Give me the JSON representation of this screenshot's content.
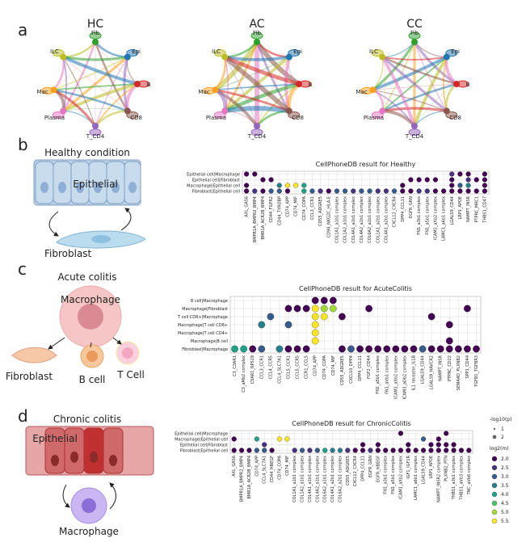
{
  "panel_labels": [
    "a",
    "b",
    "c",
    "d"
  ],
  "networks": [
    {
      "title": "HC",
      "nodes": [
        "Fib",
        "Epi",
        "B",
        "CD8",
        "T_CD4",
        "Plasma",
        "Mac",
        "ILC"
      ]
    },
    {
      "title": "AC",
      "nodes": [
        "Fib",
        "Epi",
        "B",
        "CD8",
        "T_CD4",
        "Plasma",
        "Mac",
        "ILC"
      ]
    },
    {
      "title": "CC",
      "nodes": [
        "Fib",
        "Epi",
        "B",
        "CD8",
        "T_CD4",
        "Plasma",
        "Mac",
        "ILC"
      ]
    }
  ],
  "panel_b": {
    "cartoon": {
      "title": "Healthy condition",
      "cells": [
        "Epithelial",
        "Fibroblast"
      ]
    },
    "dotplot": {
      "title": "CellPhoneDB result for Healthy",
      "rows": [
        "Epithelial cell|Macrophage",
        "Epithelial cell|Fibroblast",
        "Macrophage|Epithelial cell",
        "Fibroblast|Epithelial cell"
      ],
      "columns": [
        "AXL_GAS6",
        "BMPR1A_BMPR2_BMP4",
        "BMR1A_ACR2B_BMP4",
        "CD44_FGFR2",
        "CD44_TYROBP",
        "CD74_APP",
        "CD74_MIF",
        "CD74_COPA",
        "CCL3_CCR1",
        "CD55_ADGRE5",
        "CD94_NKG2C_HLA-E",
        "COL1A1_a1b1 complex",
        "COL1A2_a1b1 complex",
        "COL4A1_a1b1 complex",
        "COL4A2_a1b1 complex",
        "COL6A2_a1b1 complex",
        "COL1A1_a2b1 complex",
        "COL4A1_a2b1 complex",
        "CXCL12_CXCR4",
        "DPP4_CCL11",
        "EGFR_GRN",
        "FN1_a3b1 complex",
        "FN1_a5b1 complex",
        "ICAM1_aXb2 complex",
        "LAMC1_a6b1 complex",
        "LGALS9_CD44",
        "LRP1_APOE",
        "NAMPT_INSR",
        "PTPRC_MRC1",
        "THBS1_CD47"
      ],
      "levels": [
        [
          2,
          2,
          null,
          null,
          null,
          null,
          null,
          null,
          null,
          null,
          null,
          null,
          null,
          null,
          null,
          null,
          null,
          null,
          null,
          null,
          null,
          null,
          null,
          null,
          null,
          2.5,
          2,
          2,
          null,
          2
        ],
        [
          null,
          null,
          2,
          2,
          null,
          null,
          null,
          null,
          null,
          null,
          null,
          null,
          null,
          null,
          null,
          null,
          null,
          null,
          null,
          null,
          2,
          2,
          2,
          2,
          null,
          2,
          null,
          2.5,
          2,
          2
        ],
        [
          2,
          null,
          null,
          null,
          3.5,
          5.5,
          5.5,
          4,
          null,
          null,
          null,
          null,
          null,
          null,
          null,
          null,
          null,
          null,
          null,
          2,
          null,
          null,
          null,
          null,
          null,
          2,
          3,
          3.5,
          null,
          2
        ],
        [
          2,
          2.5,
          2,
          3,
          3,
          2,
          null,
          4,
          3,
          2.5,
          2,
          3,
          3,
          2.5,
          3,
          3,
          2.5,
          2.5,
          3,
          2,
          2,
          2.5,
          2.5,
          2,
          2,
          2,
          2,
          2,
          2,
          2
        ]
      ]
    }
  },
  "panel_c": {
    "cartoon": {
      "title": "Acute colitis",
      "cells": [
        "Macrophage",
        "Fibroblast",
        "B cell",
        "T Cell"
      ]
    },
    "dotplot": {
      "title": "CellPhoneDB result for AcuteColitis",
      "rows": [
        "B cell|Macrophage",
        "Macrophage|Fibroblast",
        "T cell CD8+|Macrophage",
        "Macrophage|T cell CD8+",
        "Macrophage|T cell CD4+",
        "Macrophage|B cell",
        "Fibroblast|Macrophage"
      ],
      "columns": [
        "C3_C3AR1",
        "C3_aMb2 complex",
        "C5AR1_RPS19",
        "CCL3_CCR1",
        "CCL4_CCR5",
        "CCL4_SLC7A1",
        "CCL5_CCR1",
        "CCL5_CCR5",
        "CCR1_CCL5",
        "CD74_APP",
        "CD74_COPA",
        "CD74_MIF",
        "CD55_ADGRE5",
        "CXCL10_DPP4",
        "DPP4_CCL11",
        "FGF2_CD44",
        "FN1_a5b1 complex",
        "FN1_aVb1 complex",
        "ICAM1_aXb2 complex",
        "ICAM3_aDb2 complex",
        "IL1 receptor_IL1B",
        "LGALS9_CD44",
        "LGALS9_HAVCR2",
        "NAMPT_INSR",
        "PTPRC_CD22",
        "SEMA4D_PLXNB2",
        "SPP1_CD44",
        "TGFB1_TGFBR3"
      ],
      "levels": [
        [
          null,
          null,
          null,
          null,
          null,
          null,
          null,
          null,
          null,
          2,
          2,
          2,
          null,
          null,
          null,
          null,
          null,
          null,
          null,
          null,
          null,
          null,
          null,
          null,
          null,
          null,
          null,
          null
        ],
        [
          null,
          null,
          null,
          null,
          null,
          null,
          2,
          2,
          2,
          5.5,
          5,
          5,
          null,
          null,
          null,
          2,
          null,
          null,
          null,
          null,
          null,
          null,
          null,
          null,
          null,
          null,
          2,
          null
        ],
        [
          null,
          null,
          null,
          null,
          3,
          null,
          null,
          null,
          null,
          5.5,
          5.5,
          null,
          2,
          null,
          null,
          null,
          null,
          null,
          null,
          null,
          null,
          null,
          2,
          null,
          null,
          null,
          null,
          null
        ],
        [
          null,
          null,
          null,
          3.5,
          null,
          null,
          3,
          null,
          null,
          5.5,
          null,
          null,
          null,
          null,
          null,
          null,
          null,
          null,
          null,
          null,
          null,
          null,
          null,
          null,
          2,
          null,
          null,
          null
        ],
        [
          null,
          null,
          null,
          null,
          null,
          null,
          null,
          null,
          null,
          5.5,
          null,
          null,
          null,
          null,
          null,
          null,
          null,
          null,
          null,
          null,
          null,
          null,
          null,
          null,
          null,
          null,
          null,
          null
        ],
        [
          null,
          null,
          null,
          null,
          null,
          null,
          null,
          null,
          null,
          5.5,
          null,
          null,
          null,
          null,
          null,
          null,
          null,
          null,
          null,
          null,
          null,
          null,
          null,
          null,
          2,
          null,
          null,
          null
        ],
        [
          4,
          4,
          2,
          3,
          null,
          3.5,
          2,
          2,
          2,
          null,
          null,
          null,
          2,
          3,
          2,
          2,
          2,
          2,
          2,
          2,
          2,
          3,
          2,
          2,
          2,
          2,
          2,
          2
        ]
      ]
    }
  },
  "panel_d": {
    "cartoon": {
      "title": "Chronic colitis",
      "cells": [
        "Epithelial",
        "Macrophage"
      ]
    },
    "dotplot": {
      "title": "CellPhoneDB result for ChronicColitis",
      "rows": [
        "Epithelial cell|Macrophage",
        "Macrophage|Epithelial cell",
        "Epithelial cell|Fibroblast",
        "Fibroblast|Epithelial cell"
      ],
      "columns": [
        "AXL_GAS6",
        "BMPR1A_BMPR2_BMP4",
        "BMR1A_ACR2B_BMP4",
        "CD74_APP",
        "CCL4_SLC7A1",
        "CD44_HBEGF",
        "CD74_COPA",
        "CD74_MIF",
        "COL1A1_a1b1 complex",
        "COL1A2_a1b1 complex",
        "COL4A1_a1b1 complex",
        "COL4A2_a1b1 complex",
        "COL6A2_a1b1 complex",
        "COL4A1_a2b1 complex",
        "COL6A2_a2b1 complex",
        "CD55_ADGRE5",
        "CXCL12_CXCR4",
        "DPP4_CCL11",
        "EGFR_GRN",
        "EGFR_HBEGF",
        "FN1_a3b1 complex",
        "FN1_a5b1 complex",
        "ICAM1_aXb2 complex",
        "IGF1_IGF1R",
        "LAMC1_a6b1 complex",
        "LGALS9_CD44",
        "LRP1_APOE",
        "NAMPT_INSR2 complex",
        "PLXNB2_PTN",
        "THBS1_a3b1 complex",
        "THBS1_aVb3 complex",
        "TNC_aVb6 complex"
      ],
      "highlight": {
        "column": 27,
        "color": "#e8191c"
      },
      "levels": [
        [
          null,
          null,
          null,
          null,
          null,
          null,
          null,
          null,
          null,
          null,
          null,
          null,
          null,
          null,
          null,
          null,
          null,
          null,
          null,
          null,
          null,
          null,
          2,
          null,
          null,
          null,
          null,
          null,
          2,
          null,
          null,
          null
        ],
        [
          2,
          null,
          null,
          4,
          null,
          null,
          5.5,
          5.5,
          null,
          null,
          null,
          null,
          null,
          null,
          null,
          null,
          null,
          null,
          null,
          null,
          null,
          null,
          null,
          null,
          null,
          3,
          null,
          2,
          null,
          null,
          null,
          null
        ],
        [
          null,
          null,
          null,
          null,
          2.5,
          null,
          null,
          null,
          null,
          null,
          null,
          null,
          null,
          null,
          null,
          null,
          null,
          2,
          null,
          2,
          null,
          null,
          null,
          2,
          null,
          null,
          2,
          2,
          2,
          2,
          null,
          null
        ],
        [
          2,
          2,
          2,
          3,
          3,
          2,
          null,
          null,
          2.5,
          3,
          2.5,
          3,
          4,
          3.5,
          3.5,
          2.5,
          2,
          2,
          2.5,
          2,
          2,
          2,
          2,
          2,
          2,
          2,
          2,
          2,
          2,
          2,
          2,
          2
        ]
      ]
    },
    "legend": {
      "size_title": "-log10(p)",
      "sizes": [
        1,
        2
      ],
      "color_title": "log2(m)",
      "levels": [
        {
          "value": 2,
          "label": "2.0"
        },
        2.5,
        {
          "value": 3,
          "label": "3.0"
        },
        3.5,
        {
          "value": 4,
          "label": "4.0"
        },
        4.5,
        {
          "value": 5,
          "label": "5.0"
        },
        5.5
      ],
      "colors": [
        "#440154",
        "#46327e",
        "#365c8d",
        "#277f8e",
        "#1fa187",
        "#4ac16d",
        "#a0da39",
        "#fde725"
      ]
    }
  }
}
